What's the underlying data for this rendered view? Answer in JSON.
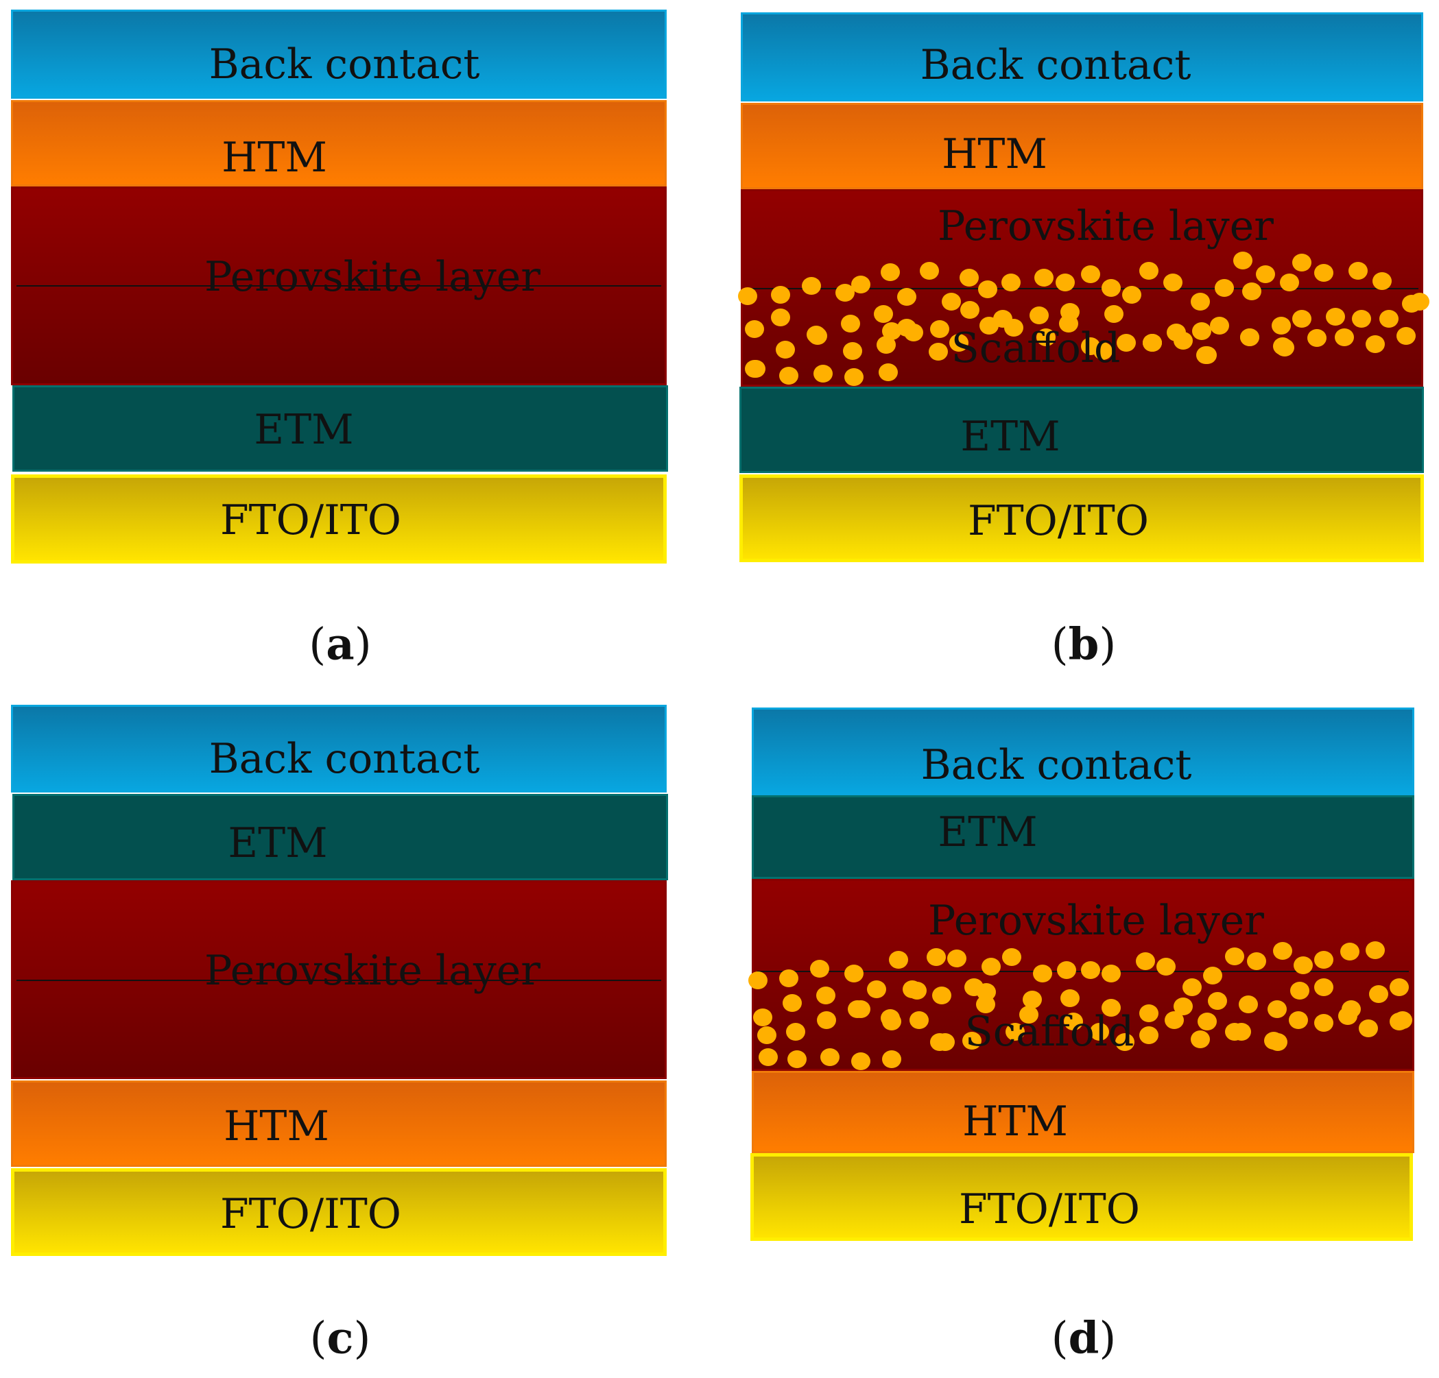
{
  "panels": [
    {
      "label": "a",
      "layers": [
        "Back contact",
        "HTM",
        "Perovskite layer",
        "ETM",
        "FTO/ITO"
      ]
    },
    {
      "label": "b",
      "layers": [
        "Back contact",
        "HTM",
        "Perovskite layer",
        "Scaffold",
        "ETM",
        "FTO/ITO"
      ]
    },
    {
      "label": "c",
      "layers": [
        "Back contact",
        "ETM",
        "Perovskite layer",
        "HTM",
        "FTO/ITO"
      ]
    },
    {
      "label": "d",
      "layers": [
        "Back contact",
        "ETM",
        "Perovskite layer",
        "Scaffold",
        "HTM",
        "FTO/ITO"
      ]
    }
  ],
  "paren_open": "(",
  "paren_close": ")",
  "colors": {
    "back_contact": "#08a6e0",
    "htm": "#ff7d00",
    "perovskite": "#8a0000",
    "etm": "#03504f",
    "fto_ito": "#ffe400",
    "scaffold_particle": "#ffb000"
  }
}
